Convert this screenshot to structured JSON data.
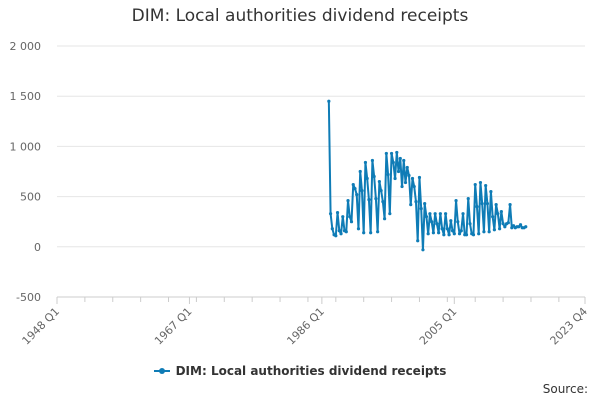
{
  "chart_data": {
    "type": "line",
    "title": "DIM: Local authorities dividend receipts",
    "xlabel": "",
    "ylabel": "",
    "ylim": [
      -500,
      2000
    ],
    "yticks": [
      -500,
      0,
      500,
      1000,
      1500,
      2000
    ],
    "ytick_labels": [
      "-500",
      "0",
      "500",
      "1 000",
      "1 500",
      "2 000"
    ],
    "xticks": [
      "1948 Q1",
      "1967 Q1",
      "1986 Q1",
      "2005 Q1",
      "2023 Q4"
    ],
    "x_start_quarter": "1948 Q1",
    "x_end_quarter": "2023 Q4",
    "grid": true,
    "legend_position": "bottom",
    "series": [
      {
        "name": "DIM: Local authorities dividend receipts",
        "color": "#0f7cb6",
        "start_quarter": "1987 Q1",
        "values": [
          1450,
          330,
          180,
          120,
          110,
          340,
          160,
          130,
          300,
          160,
          150,
          460,
          300,
          250,
          620,
          580,
          520,
          180,
          750,
          560,
          140,
          840,
          680,
          470,
          140,
          860,
          700,
          480,
          150,
          650,
          560,
          450,
          280,
          930,
          720,
          330,
          930,
          840,
          680,
          940,
          750,
          880,
          600,
          860,
          640,
          790,
          710,
          420,
          680,
          600,
          450,
          60,
          690,
          380,
          -30,
          430,
          300,
          130,
          330,
          250,
          140,
          330,
          230,
          140,
          330,
          180,
          120,
          330,
          180,
          120,
          260,
          160,
          130,
          460,
          250,
          130,
          160,
          330,
          120,
          120,
          480,
          230,
          130,
          120,
          620,
          400,
          130,
          640,
          430,
          150,
          610,
          430,
          150,
          550,
          300,
          170,
          420,
          330,
          180,
          350,
          230,
          200,
          230,
          240,
          420,
          190,
          210,
          190,
          200,
          200,
          220,
          190,
          190,
          200
        ]
      }
    ]
  },
  "legend": {
    "label": "DIM: Local authorities dividend receipts"
  },
  "source_label": "Source:"
}
